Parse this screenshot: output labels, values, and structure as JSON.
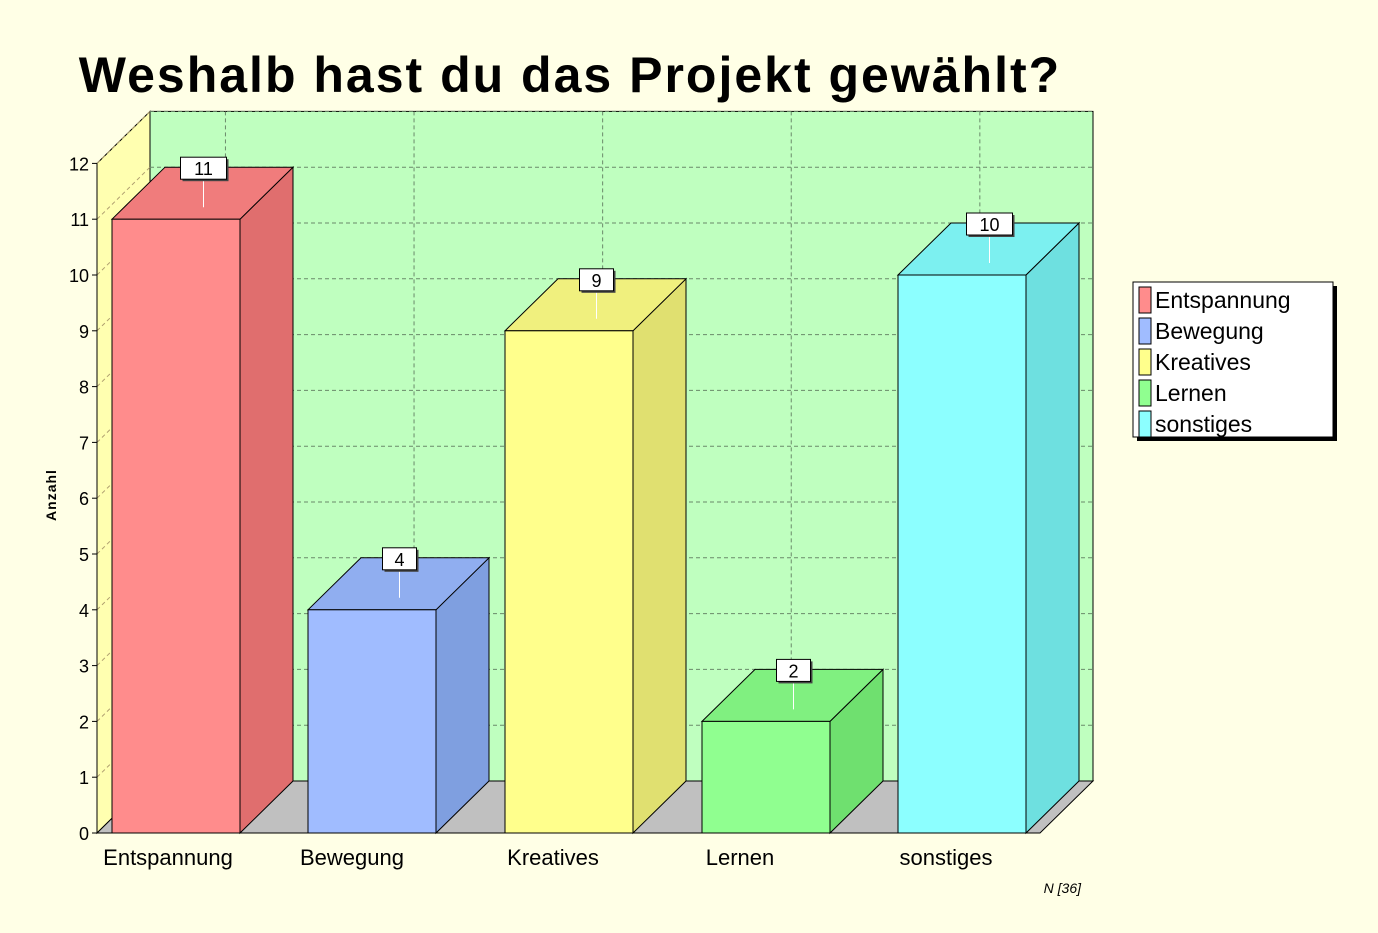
{
  "chart_data": {
    "type": "bar",
    "title": "Weshalb hast du das Projekt gewählt?",
    "ylabel": "Anzahl",
    "xlabel": "",
    "categories": [
      "Entspannung",
      "Bewegung",
      "Kreatives",
      "Lernen",
      "sonstiges"
    ],
    "values": [
      11,
      4,
      9,
      2,
      10
    ],
    "ylim": [
      0,
      12
    ],
    "yticks": [
      "0",
      "1",
      "2",
      "3",
      "4",
      "5",
      "6",
      "7",
      "8",
      "9",
      "10",
      "11",
      "12"
    ],
    "grid": true,
    "three_d": true,
    "legend": {
      "placement": "right",
      "entries": [
        "Entspannung",
        "Bewegung",
        "Kreatives",
        "Lernen",
        "sonstiges"
      ]
    },
    "note": "N [36]",
    "colors": {
      "bars": [
        "#ff8c8c",
        "#a0bcff",
        "#ffff8c",
        "#90ff90",
        "#8cffff"
      ],
      "bars_side": [
        "#e06e6e",
        "#7f9fe0",
        "#e0e070",
        "#6fe06f",
        "#6ee0e0"
      ],
      "bars_top": [
        "#f07c7c",
        "#90aef0",
        "#f0f07e",
        "#80f080",
        "#7cf0f0"
      ],
      "back_wall": "#bfffbf",
      "left_wall": "#ffffb0",
      "floor": "#c0c0c0",
      "background": "#ffffe6"
    }
  }
}
